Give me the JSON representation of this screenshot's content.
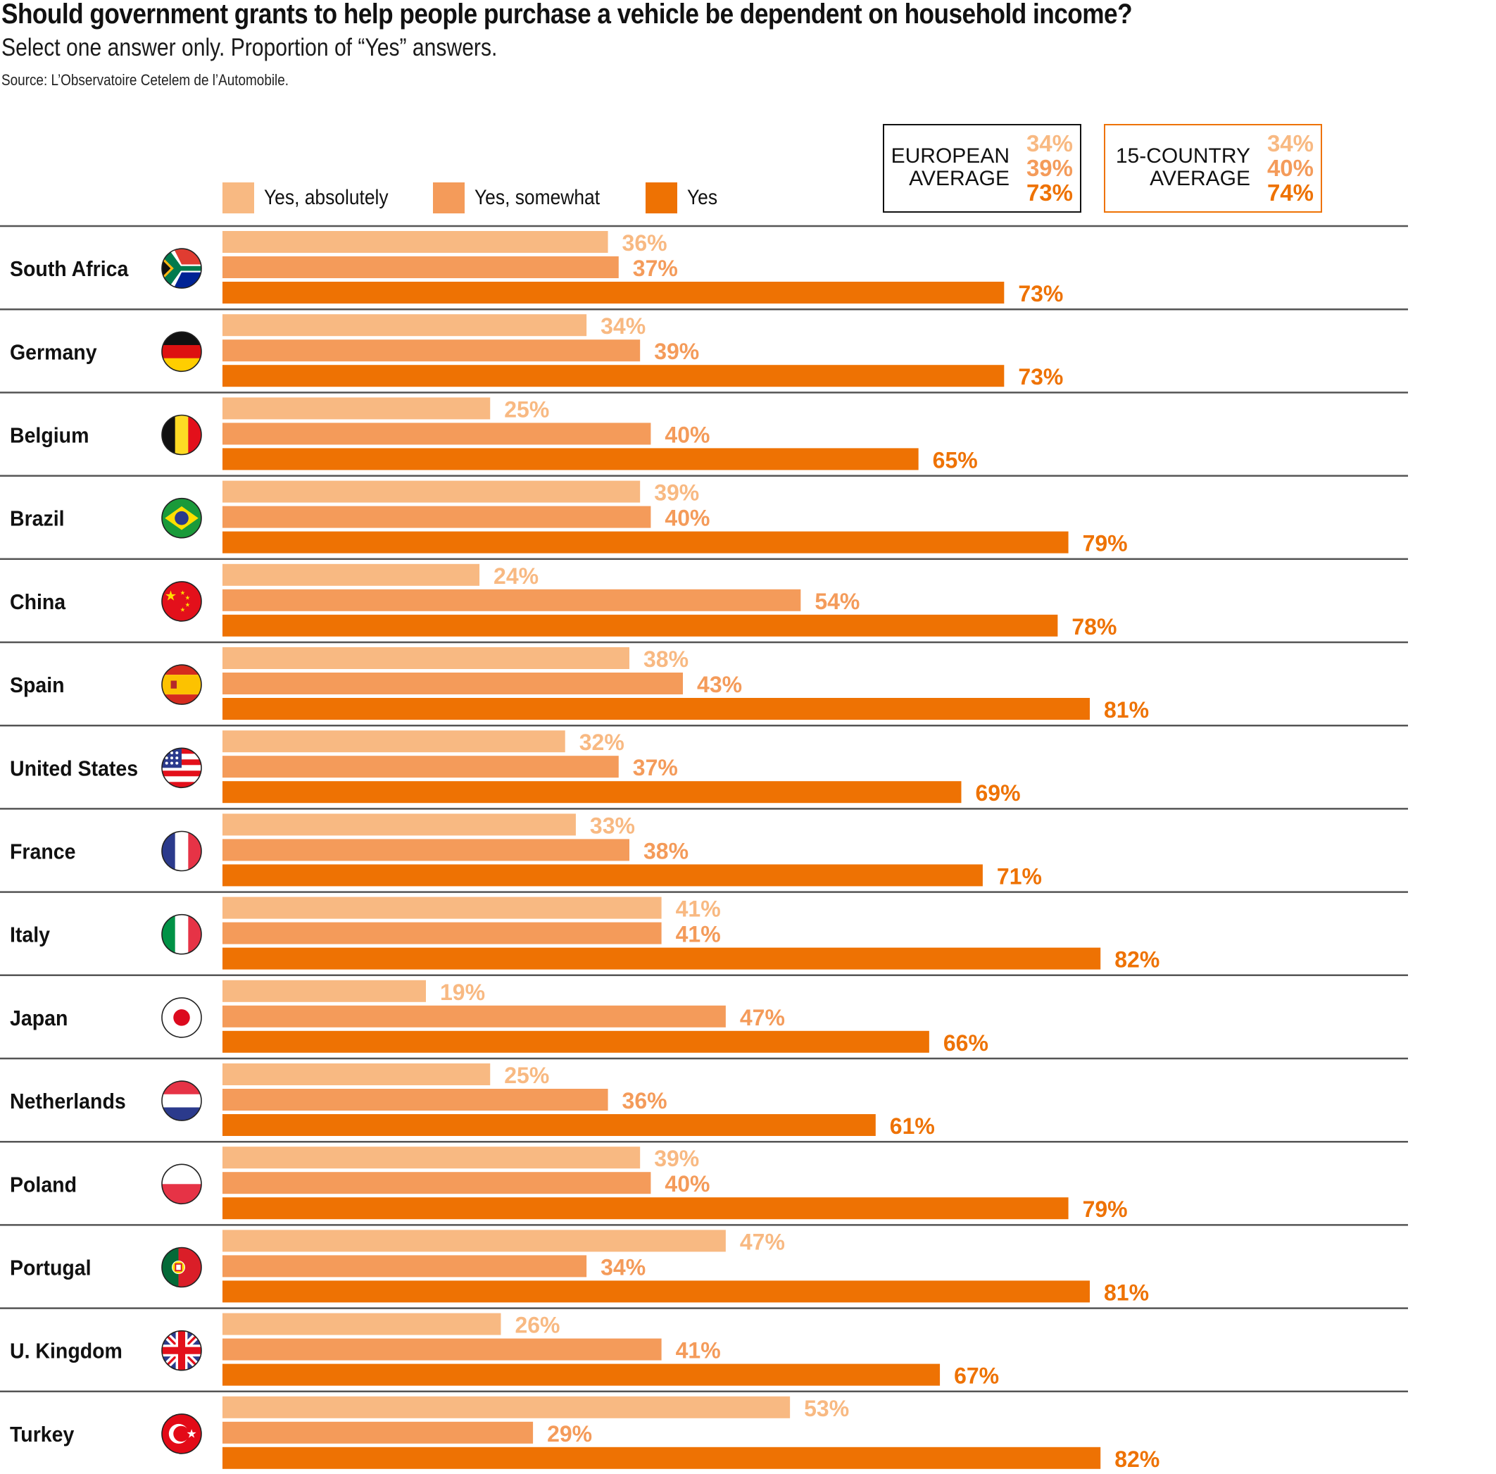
{
  "header": {
    "title": "Should government grants to help people purchase a vehicle be dependent on household income?",
    "subtitle": "Select one answer only. Proportion of “Yes” answers.",
    "source": "Source: L’Observatoire Cetelem de l’Automobile."
  },
  "colors": {
    "yes_absolutely": "#f8b982",
    "yes_somewhat": "#f49b5a",
    "yes": "#ee7203",
    "separator": "#555555",
    "text": "#111111"
  },
  "legend": [
    {
      "label": "Yes, absolutely",
      "key": "yes_absolutely"
    },
    {
      "label": "Yes, somewhat",
      "key": "yes_somewhat"
    },
    {
      "label": "Yes",
      "key": "yes"
    }
  ],
  "averages": {
    "european": {
      "label_line1": "EUROPEAN",
      "label_line2": "AVERAGE",
      "values": [
        "34%",
        "39%",
        "73%"
      ]
    },
    "fifteen_country": {
      "label_line1": "15-COUNTRY",
      "label_line2": "AVERAGE",
      "values": [
        "34%",
        "40%",
        "74%"
      ]
    }
  },
  "chart_data": {
    "type": "bar",
    "orientation": "horizontal",
    "title": "Should government grants to help people purchase a vehicle be dependent on household income?",
    "subtitle": "Select one answer only. Proportion of “Yes” answers.",
    "xlabel": "",
    "ylabel": "",
    "xlim": [
      0,
      100
    ],
    "unit": "%",
    "legend_position": "top",
    "grid": false,
    "categories": [
      "South Africa",
      "Germany",
      "Belgium",
      "Brazil",
      "China",
      "Spain",
      "United States",
      "France",
      "Italy",
      "Japan",
      "Netherlands",
      "Poland",
      "Portugal",
      "U. Kingdom",
      "Turkey"
    ],
    "flags": [
      "south-africa",
      "germany",
      "belgium",
      "brazil",
      "china",
      "spain",
      "united-states",
      "france",
      "italy",
      "japan",
      "netherlands",
      "poland",
      "portugal",
      "united-kingdom",
      "turkey"
    ],
    "series": [
      {
        "name": "Yes, absolutely",
        "color": "#f8b982",
        "values": [
          36,
          34,
          25,
          39,
          24,
          38,
          32,
          33,
          41,
          19,
          25,
          39,
          47,
          26,
          53
        ]
      },
      {
        "name": "Yes, somewhat",
        "color": "#f49b5a",
        "values": [
          37,
          39,
          40,
          40,
          54,
          43,
          37,
          38,
          41,
          47,
          36,
          40,
          34,
          41,
          29
        ]
      },
      {
        "name": "Yes",
        "color": "#ee7203",
        "values": [
          73,
          73,
          65,
          79,
          78,
          81,
          69,
          71,
          82,
          66,
          61,
          79,
          81,
          67,
          82
        ]
      }
    ]
  }
}
